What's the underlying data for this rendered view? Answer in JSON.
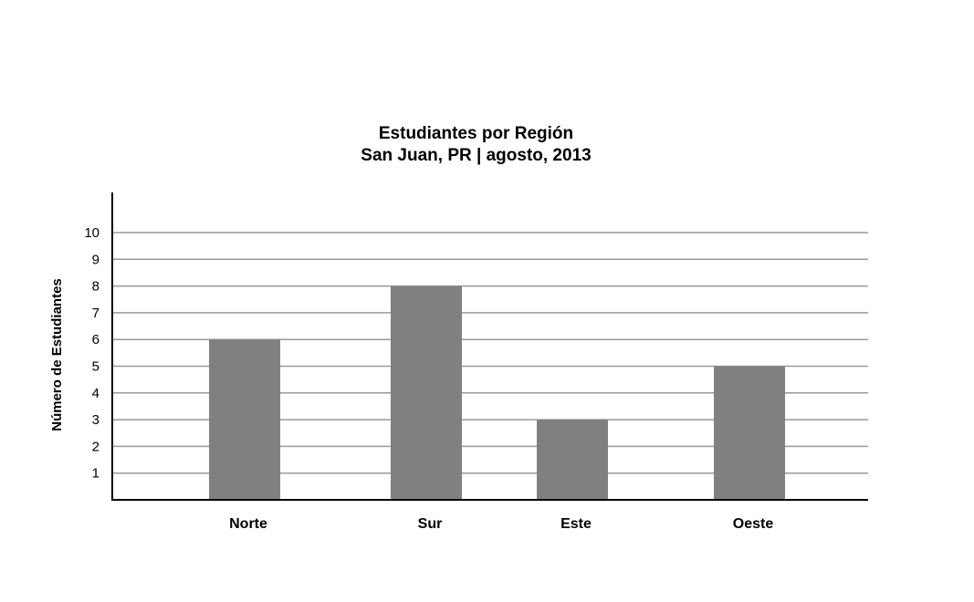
{
  "chart_data": {
    "type": "bar",
    "title": "Estudiantes por Región",
    "subtitle": "San Juan, PR | agosto, 2013",
    "xlabel": "",
    "ylabel": "Número de Estudiantes",
    "categories": [
      "Norte",
      "Sur",
      "Este",
      "Oeste"
    ],
    "values": [
      6,
      8,
      3,
      5
    ],
    "yticks": [
      "1",
      "2",
      "3",
      "4",
      "5",
      "6",
      "7",
      "8",
      "9",
      "10"
    ],
    "ylim": [
      0,
      11
    ],
    "grid": true,
    "legend": "none",
    "colors": {
      "bar": "#808080",
      "grid": "#9a9a9a",
      "axis": "#000000"
    }
  }
}
